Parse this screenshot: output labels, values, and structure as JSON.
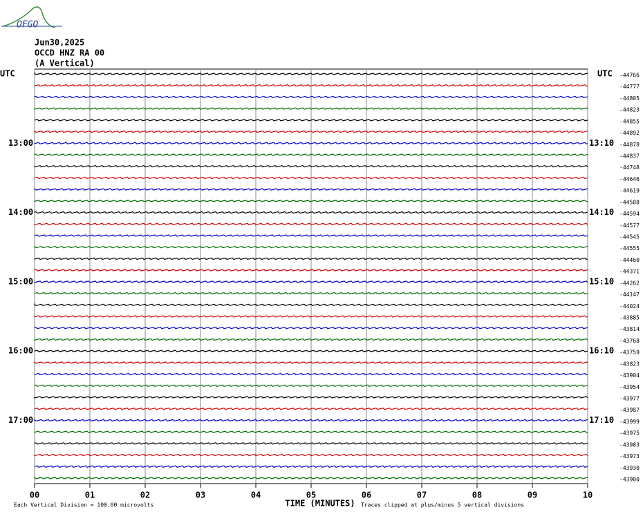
{
  "logo": "OFGO",
  "chart_data": {
    "type": "helicorder",
    "title_lines": [
      "Jun30,2025",
      "OCCD HNZ RA 00",
      "(A Vertical)"
    ],
    "left_axis_label": "UTC",
    "right_axis_label": "UTC",
    "xlabel": "TIME (MINUTES)",
    "xlim": [
      0,
      10
    ],
    "xticks": [
      {
        "value": 0,
        "label": "00"
      },
      {
        "value": 1,
        "label": "01"
      },
      {
        "value": 2,
        "label": "02"
      },
      {
        "value": 3,
        "label": "03"
      },
      {
        "value": 4,
        "label": "04"
      },
      {
        "value": 5,
        "label": "05"
      },
      {
        "value": 6,
        "label": "06"
      },
      {
        "value": 7,
        "label": "07"
      },
      {
        "value": 8,
        "label": "08"
      },
      {
        "value": 9,
        "label": "09"
      },
      {
        "value": 10,
        "label": "10"
      }
    ],
    "colors": [
      "#000000",
      "#d00000",
      "#0000c8",
      "#006e00"
    ],
    "rows": [
      {
        "offset": -44766
      },
      {
        "offset": -44777
      },
      {
        "offset": -44805
      },
      {
        "offset": -44823
      },
      {
        "offset": -44855
      },
      {
        "offset": -44892
      },
      {
        "offset": -44878,
        "time_left": "13:00",
        "time_right": "13:10"
      },
      {
        "offset": -44837
      },
      {
        "offset": -44748
      },
      {
        "offset": -44646
      },
      {
        "offset": -44619
      },
      {
        "offset": -44588
      },
      {
        "offset": -44594,
        "time_left": "14:00",
        "time_right": "14:10"
      },
      {
        "offset": -44577
      },
      {
        "offset": -44545
      },
      {
        "offset": -44555
      },
      {
        "offset": -44460
      },
      {
        "offset": -44371
      },
      {
        "offset": -44262,
        "time_left": "15:00",
        "time_right": "15:10"
      },
      {
        "offset": -44147
      },
      {
        "offset": -44024
      },
      {
        "offset": -43885
      },
      {
        "offset": -43814
      },
      {
        "offset": -43768
      },
      {
        "offset": -43759,
        "time_left": "16:00",
        "time_right": "16:10"
      },
      {
        "offset": -43823
      },
      {
        "offset": -43904
      },
      {
        "offset": -43954
      },
      {
        "offset": -43977
      },
      {
        "offset": -43987
      },
      {
        "offset": -43999,
        "time_left": "17:00",
        "time_right": "17:10"
      },
      {
        "offset": -43975
      },
      {
        "offset": -43983
      },
      {
        "offset": -43973
      },
      {
        "offset": -43930
      },
      {
        "offset": -43900
      }
    ],
    "footnote_left": "Each Vertical Division =  100.00 microvolts",
    "footnote_right": "Traces clipped at plus/minus 5 vertical divisions"
  }
}
